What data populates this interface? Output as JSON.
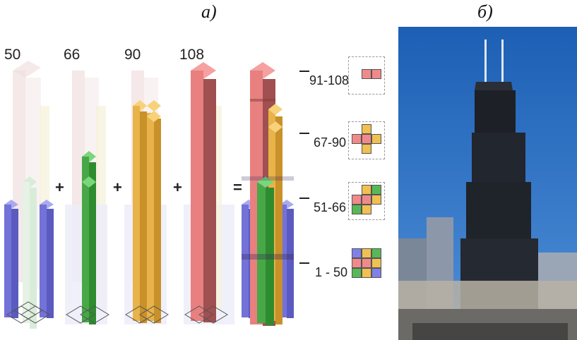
{
  "panels": {
    "a_label": "а)",
    "b_label": "б)"
  },
  "heights": [
    "50",
    "66",
    "90",
    "108"
  ],
  "operators": [
    "+",
    "+",
    "+",
    "="
  ],
  "ranges": [
    "91-108",
    "67-90",
    "51-66",
    "1 - 50"
  ],
  "colors": {
    "blue": "#8080e8",
    "green": "#58b858",
    "orange": "#f0c050",
    "red": "#f08a8a",
    "faint": "#f4dede"
  },
  "keys": [
    {
      "cells": [
        0,
        0,
        0,
        0,
        "red",
        "red",
        0,
        0,
        0
      ]
    },
    {
      "cells": [
        0,
        "orange",
        0,
        "red",
        "red",
        "orange",
        0,
        "orange",
        0
      ]
    },
    {
      "cells": [
        0,
        "orange",
        "green",
        "red",
        "red",
        "orange",
        "green",
        "orange",
        0
      ]
    },
    {
      "cells": [
        "blue",
        "orange",
        "green",
        "red",
        "red",
        "orange",
        "green",
        "orange",
        "blue"
      ]
    }
  ]
}
